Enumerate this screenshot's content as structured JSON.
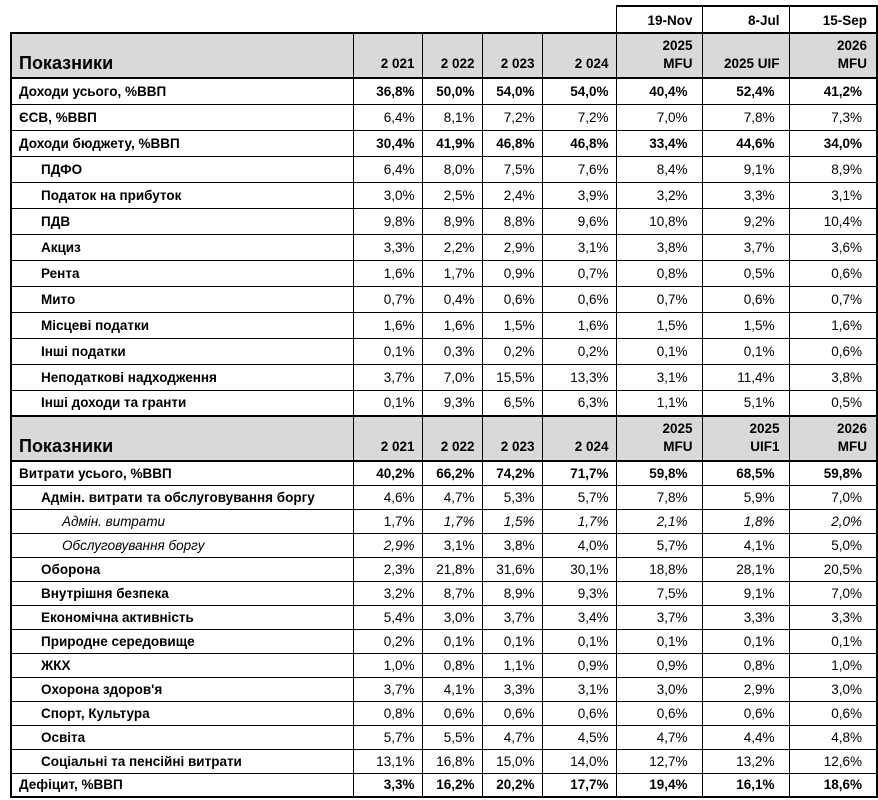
{
  "page": {
    "background": "#ffffff"
  },
  "colors": {
    "header_bg": "#d9d9d9",
    "border": "#000000",
    "text": "#000000"
  },
  "date_row": [
    "19-Nov",
    "8-Jul",
    "15-Sep"
  ],
  "sections": [
    {
      "header": {
        "title": "Показники",
        "columns": [
          [
            "2 021"
          ],
          [
            "2 022"
          ],
          [
            "2 023"
          ],
          [
            "2 024"
          ],
          [
            "2025",
            "MFU"
          ],
          [
            "2025 UIF"
          ],
          [
            "2026",
            "MFU"
          ]
        ]
      },
      "rows": [
        {
          "label": "Доходи усього, %ВВП",
          "indent": 0,
          "value_bold": true,
          "values": [
            "36,8%",
            "50,0%",
            "54,0%",
            "54,0%",
            "40,4%",
            "52,4%",
            "41,2%"
          ]
        },
        {
          "label": "ЄСВ, %ВВП",
          "indent": 0,
          "values": [
            "6,4%",
            "8,1%",
            "7,2%",
            "7,2%",
            "7,0%",
            "7,8%",
            "7,3%"
          ]
        },
        {
          "label": "Доходи бюджету, %ВВП",
          "indent": 0,
          "value_bold": true,
          "values": [
            "30,4%",
            "41,9%",
            "46,8%",
            "46,8%",
            "33,4%",
            "44,6%",
            "34,0%"
          ]
        },
        {
          "label": "ПДФО",
          "indent": 1,
          "values": [
            "6,4%",
            "8,0%",
            "7,5%",
            "7,6%",
            "8,4%",
            "9,1%",
            "8,9%"
          ]
        },
        {
          "label": "Податок на прибуток",
          "indent": 1,
          "values": [
            "3,0%",
            "2,5%",
            "2,4%",
            "3,9%",
            "3,2%",
            "3,3%",
            "3,1%"
          ]
        },
        {
          "label": "ПДВ",
          "indent": 1,
          "values": [
            "9,8%",
            "8,9%",
            "8,8%",
            "9,6%",
            "10,8%",
            "9,2%",
            "10,4%"
          ]
        },
        {
          "label": "Акциз",
          "indent": 1,
          "values": [
            "3,3%",
            "2,2%",
            "2,9%",
            "3,1%",
            "3,8%",
            "3,7%",
            "3,6%"
          ]
        },
        {
          "label": "Рента",
          "indent": 1,
          "values": [
            "1,6%",
            "1,7%",
            "0,9%",
            "0,7%",
            "0,8%",
            "0,5%",
            "0,6%"
          ]
        },
        {
          "label": "Мито",
          "indent": 1,
          "values": [
            "0,7%",
            "0,4%",
            "0,6%",
            "0,6%",
            "0,7%",
            "0,6%",
            "0,7%"
          ]
        },
        {
          "label": "Місцеві податки",
          "indent": 1,
          "values": [
            "1,6%",
            "1,6%",
            "1,5%",
            "1,6%",
            "1,5%",
            "1,5%",
            "1,6%"
          ]
        },
        {
          "label": "Інші податки",
          "indent": 1,
          "values": [
            "0,1%",
            "0,3%",
            "0,2%",
            "0,2%",
            "0,1%",
            "0,1%",
            "0,6%"
          ]
        },
        {
          "label": "Неподаткові надходження",
          "indent": 1,
          "values": [
            "3,7%",
            "7,0%",
            "15,5%",
            "13,3%",
            "3,1%",
            "11,4%",
            "3,8%"
          ]
        },
        {
          "label": "Інші доходи та гранти",
          "indent": 1,
          "values": [
            "0,1%",
            "9,3%",
            "6,5%",
            "6,3%",
            "1,1%",
            "5,1%",
            "0,5%"
          ]
        }
      ]
    },
    {
      "header": {
        "title": "Показники",
        "columns": [
          [
            "2 021"
          ],
          [
            "2 022"
          ],
          [
            "2 023"
          ],
          [
            "2 024"
          ],
          [
            "2025",
            "MFU"
          ],
          [
            "2025",
            "UIF1"
          ],
          [
            "2026",
            "MFU"
          ]
        ]
      },
      "rows": [
        {
          "label": "Витрати усього, %ВВП",
          "indent": 0,
          "value_bold": true,
          "values": [
            "40,2%",
            "66,2%",
            "74,2%",
            "71,7%",
            "59,8%",
            "68,5%",
            "59,8%"
          ]
        },
        {
          "label": "Адмін. витрати та обслуговування боргу",
          "indent": 1,
          "values": [
            "4,6%",
            "4,7%",
            "5,3%",
            "5,7%",
            "7,8%",
            "5,9%",
            "7,0%"
          ]
        },
        {
          "label": "Адмін. витрати",
          "indent": 2,
          "label_italic": true,
          "value_italics": [
            false,
            true,
            true,
            true,
            true,
            true,
            true
          ],
          "values": [
            "1,7%",
            "1,7%",
            "1,5%",
            "1,7%",
            "2,1%",
            "1,8%",
            "2,0%"
          ]
        },
        {
          "label": "Обслуговування боргу",
          "indent": 2,
          "label_italic": true,
          "value_italics": [
            true,
            false,
            false,
            false,
            false,
            false,
            false
          ],
          "values": [
            "2,9%",
            "3,1%",
            "3,8%",
            "4,0%",
            "5,7%",
            "4,1%",
            "5,0%"
          ]
        },
        {
          "label": "Оборона",
          "indent": 1,
          "values": [
            "2,3%",
            "21,8%",
            "31,6%",
            "30,1%",
            "18,8%",
            "28,1%",
            "20,5%"
          ]
        },
        {
          "label": "Внутрішня безпека",
          "indent": 1,
          "values": [
            "3,2%",
            "8,7%",
            "8,9%",
            "9,3%",
            "7,5%",
            "9,1%",
            "7,0%"
          ]
        },
        {
          "label": "Економічна активність",
          "indent": 1,
          "values": [
            "5,4%",
            "3,0%",
            "3,7%",
            "3,4%",
            "3,7%",
            "3,3%",
            "3,3%"
          ]
        },
        {
          "label": "Природне середовище",
          "indent": 1,
          "values": [
            "0,2%",
            "0,1%",
            "0,1%",
            "0,1%",
            "0,1%",
            "0,1%",
            "0,1%"
          ]
        },
        {
          "label": "ЖКХ",
          "indent": 1,
          "values": [
            "1,0%",
            "0,8%",
            "1,1%",
            "0,9%",
            "0,9%",
            "0,8%",
            "1,0%"
          ]
        },
        {
          "label": "Охорона здоров'я",
          "indent": 1,
          "values": [
            "3,7%",
            "4,1%",
            "3,3%",
            "3,1%",
            "3,0%",
            "2,9%",
            "3,0%"
          ]
        },
        {
          "label": "Спорт, Культура",
          "indent": 1,
          "values": [
            "0,8%",
            "0,6%",
            "0,6%",
            "0,6%",
            "0,6%",
            "0,6%",
            "0,6%"
          ]
        },
        {
          "label": "Освіта",
          "indent": 1,
          "values": [
            "5,7%",
            "5,5%",
            "4,7%",
            "4,5%",
            "4,7%",
            "4,4%",
            "4,8%"
          ]
        },
        {
          "label": "Соціальні та пенсійні витрати",
          "indent": 1,
          "values": [
            "13,1%",
            "16,8%",
            "15,0%",
            "14,0%",
            "12,7%",
            "13,2%",
            "12,6%"
          ]
        },
        {
          "label": "Дефіцит, %ВВП",
          "indent": 0,
          "value_bold": true,
          "values": [
            "3,3%",
            "16,2%",
            "20,2%",
            "17,7%",
            "19,4%",
            "16,1%",
            "18,6%"
          ]
        }
      ]
    }
  ]
}
